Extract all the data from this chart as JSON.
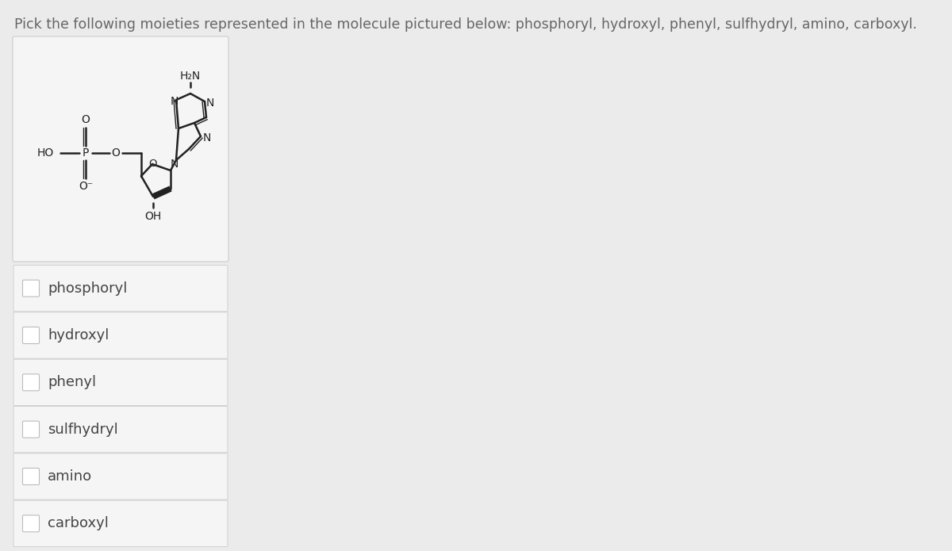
{
  "title": "Pick the following moieties represented in the molecule pictured below: phosphoryl, hydroxyl, phenyl, sulfhydryl, amino, carboxyl.",
  "title_fontsize": 12.5,
  "title_color": "#666666",
  "background_color": "#ebebeb",
  "options": [
    "phosphoryl",
    "hydroxyl",
    "phenyl",
    "sulfhydryl",
    "amino",
    "carboxyl"
  ],
  "option_text_color": "#444444",
  "option_fontsize": 13,
  "mol_box_bg": "#f5f5f5",
  "mol_box_border": "#cccccc",
  "option_bg": "#f5f5f5",
  "option_border": "#cccccc",
  "white_bg": "#ffffff",
  "cb_border": "#bbbbbb"
}
